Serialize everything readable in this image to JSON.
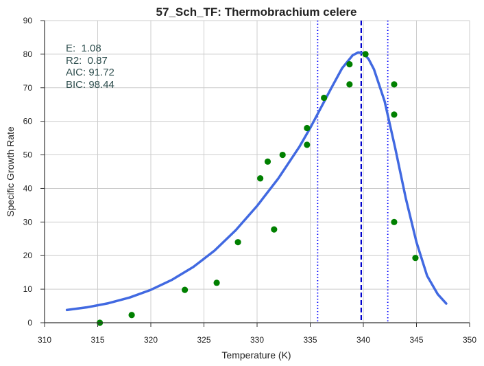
{
  "chart_data": {
    "type": "scatter",
    "title": "57_Sch_TF: Thermobrachium celere",
    "xlabel": "Temperature (K)",
    "ylabel": "Specific Growth Rate",
    "xlim": [
      310,
      350
    ],
    "ylim": [
      0,
      90
    ],
    "xticks": [
      310,
      315,
      320,
      325,
      330,
      335,
      340,
      345,
      350
    ],
    "yticks": [
      0,
      10,
      20,
      30,
      40,
      50,
      60,
      70,
      80,
      90
    ],
    "grid": true,
    "annotations": [
      "E:  1.08",
      "R2:  0.87",
      "AIC: 91.72",
      "BIC: 98.44"
    ],
    "colors": {
      "points": "#008000",
      "curve": "#4169e1",
      "peak_line": "#0000cd",
      "bound_lines": "#0000ff",
      "grid": "#cccccc",
      "axes": "#333333"
    },
    "points": [
      {
        "x": 315.2,
        "y": 0
      },
      {
        "x": 318.2,
        "y": 2.3
      },
      {
        "x": 323.2,
        "y": 9.8
      },
      {
        "x": 326.2,
        "y": 11.9
      },
      {
        "x": 328.2,
        "y": 24
      },
      {
        "x": 330.3,
        "y": 43
      },
      {
        "x": 331.0,
        "y": 48
      },
      {
        "x": 331.6,
        "y": 27.8
      },
      {
        "x": 332.4,
        "y": 50
      },
      {
        "x": 334.7,
        "y": 53
      },
      {
        "x": 334.7,
        "y": 58
      },
      {
        "x": 336.3,
        "y": 67
      },
      {
        "x": 338.7,
        "y": 71
      },
      {
        "x": 338.7,
        "y": 77
      },
      {
        "x": 340.2,
        "y": 80
      },
      {
        "x": 342.9,
        "y": 30
      },
      {
        "x": 342.9,
        "y": 62
      },
      {
        "x": 342.9,
        "y": 71
      },
      {
        "x": 344.9,
        "y": 19.3
      }
    ],
    "fitted_curve": {
      "x": [
        312.1,
        314,
        316,
        318,
        320,
        322,
        324,
        326,
        328,
        330,
        332,
        334,
        335,
        336,
        337,
        338,
        339,
        339.5,
        340,
        340.5,
        341,
        342,
        343,
        344,
        345,
        346,
        347,
        347.8
      ],
      "y": [
        3.8,
        4.6,
        5.8,
        7.5,
        9.8,
        12.8,
        16.6,
        21.5,
        27.6,
        34.8,
        43.0,
        52.5,
        58.0,
        64.0,
        70.0,
        75.8,
        79.7,
        80.5,
        80.3,
        78.5,
        75.5,
        66.0,
        52.0,
        37.0,
        24.0,
        14.0,
        8.5,
        5.7
      ]
    },
    "vertical_lines": [
      {
        "x": 335.7,
        "style": "dotted"
      },
      {
        "x": 339.8,
        "style": "dashed"
      },
      {
        "x": 342.3,
        "style": "dotted"
      }
    ]
  }
}
